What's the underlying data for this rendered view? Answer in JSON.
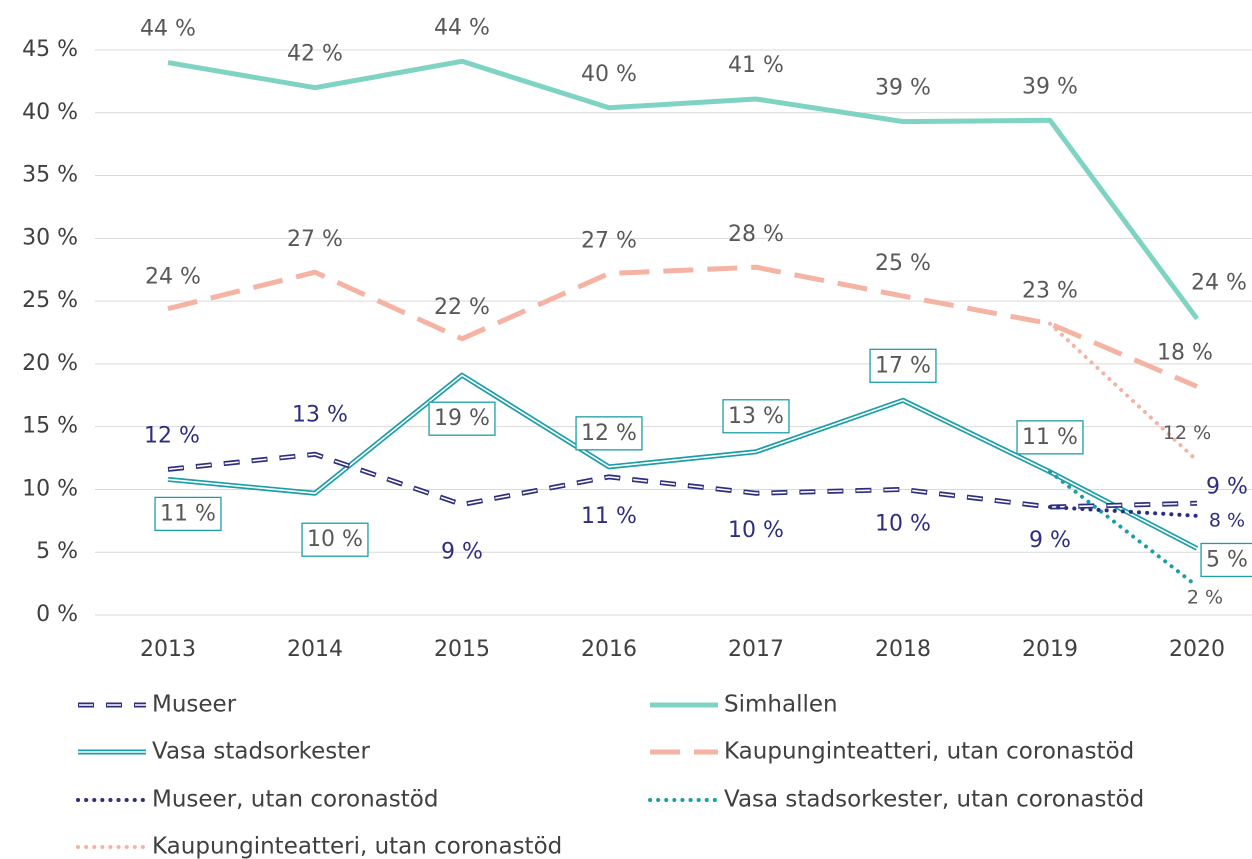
{
  "chart_data": {
    "type": "line",
    "categories": [
      "2013",
      "2014",
      "2015",
      "2016",
      "2017",
      "2018",
      "2019",
      "2020"
    ],
    "ylim": [
      0,
      45
    ],
    "yticks": [
      {
        "value": 0,
        "label": "0 %"
      },
      {
        "value": 5,
        "label": "5 %"
      },
      {
        "value": 10,
        "label": "10 %"
      },
      {
        "value": 15,
        "label": "15 %"
      },
      {
        "value": 20,
        "label": "20 %"
      },
      {
        "value": 25,
        "label": "25 %"
      },
      {
        "value": 30,
        "label": "30 %"
      },
      {
        "value": 35,
        "label": "35 %"
      },
      {
        "value": 40,
        "label": "40 %"
      },
      {
        "value": 45,
        "label": "45 %"
      }
    ],
    "grid": true,
    "legend": "bottom",
    "series": [
      {
        "name": "Museer",
        "color": "#2e2e80",
        "style": "double-dashed",
        "values": [
          11.6,
          12.8,
          8.8,
          11.0,
          9.7,
          10.0,
          8.6,
          8.9
        ],
        "value_labels": [
          "12 %",
          "13 %",
          "9 %",
          "11 %",
          "10 %",
          "10 %",
          "9 %",
          "9 %"
        ]
      },
      {
        "name": "Simhallen",
        "color": "#7fd3c3",
        "style": "solid",
        "values": [
          44.0,
          42.0,
          44.1,
          40.4,
          41.1,
          39.3,
          39.4,
          23.6
        ],
        "value_labels": [
          "44 %",
          "42 %",
          "44 %",
          "40 %",
          "41 %",
          "39 %",
          "39 %",
          "24 %"
        ]
      },
      {
        "name": "Vasa stadsorkester",
        "color": "#1c9ea8",
        "style": "double",
        "values": [
          10.8,
          9.7,
          19.1,
          11.8,
          13.0,
          17.1,
          11.4,
          5.3
        ],
        "value_labels": [
          "11 %",
          "10 %",
          "19 %",
          "12 %",
          "13 %",
          "17 %",
          "11 %",
          "5 %"
        ]
      },
      {
        "name": "Kaupunginteatteri, utan coronastöd",
        "color": "#f4b3a3",
        "style": "dashed",
        "values": [
          24.4,
          27.3,
          22.0,
          27.2,
          27.7,
          25.4,
          23.2,
          18.2
        ],
        "value_labels": [
          "24 %",
          "27 %",
          "22 %",
          "27 %",
          "28 %",
          "25 %",
          "23 %",
          "18 %"
        ]
      },
      {
        "name": "Museer, utan coronastöd",
        "color": "#2e2e80",
        "style": "dotted",
        "values": [
          null,
          null,
          null,
          null,
          null,
          null,
          8.6,
          7.9
        ],
        "value_labels": [
          null,
          null,
          null,
          null,
          null,
          null,
          null,
          "8 %"
        ]
      },
      {
        "name": "Vasa stadsorkester, utan coronastöd",
        "color": "#1c9ea8",
        "style": "dotted",
        "values": [
          null,
          null,
          null,
          null,
          null,
          null,
          11.4,
          2.3
        ],
        "value_labels": [
          null,
          null,
          null,
          null,
          null,
          null,
          null,
          "2 %"
        ]
      },
      {
        "name": "Kaupunginteatteri, utan coronastöd",
        "color": "#f4b3a3",
        "style": "dotted",
        "values": [
          null,
          null,
          null,
          null,
          null,
          null,
          23.2,
          12.3
        ],
        "value_labels": [
          null,
          null,
          null,
          null,
          null,
          null,
          null,
          "12 %"
        ]
      }
    ]
  }
}
